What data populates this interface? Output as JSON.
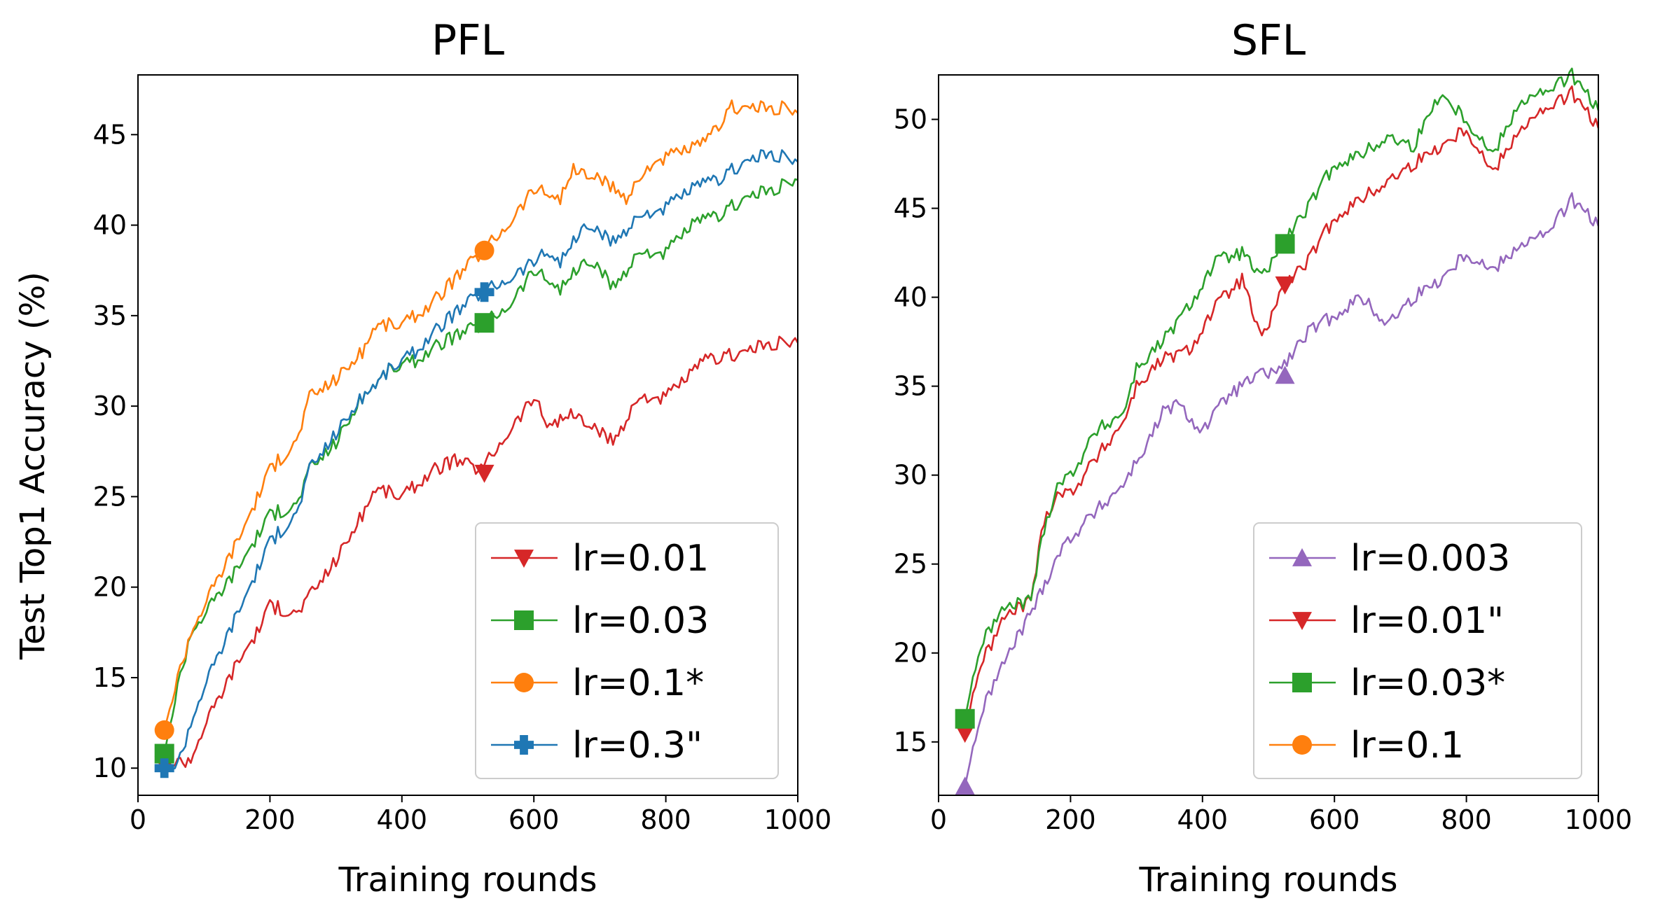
{
  "chart_data": [
    {
      "type": "line",
      "title": "PFL",
      "xlabel": "Training rounds",
      "ylabel": "Test Top1 Accuracy (%)",
      "xlim": [
        0,
        1000
      ],
      "ylim": [
        8.5,
        48.3
      ],
      "xticks": [
        "0",
        "200",
        "400",
        "600",
        "800",
        "1000"
      ],
      "yticks": [
        "10",
        "15",
        "20",
        "25",
        "30",
        "35",
        "40",
        "45"
      ],
      "legend_position": "lower-right",
      "series": [
        {
          "name": "lr=0.01",
          "color": "#d62728",
          "marker": "triangle-down",
          "x": [
            40,
            80,
            100,
            150,
            180,
            200,
            240,
            260,
            300,
            340,
            360,
            400,
            450,
            480,
            520,
            560,
            600,
            620,
            660,
            700,
            720,
            760,
            800,
            860,
            900,
            960,
            1000
          ],
          "values": [
            10.2,
            10.5,
            12.3,
            15.8,
            17.5,
            19.0,
            18.5,
            19.5,
            21.5,
            24.0,
            25.5,
            25.0,
            26.5,
            27.0,
            26.5,
            28.5,
            30.5,
            29.0,
            29.5,
            28.5,
            28.0,
            30.5,
            30.5,
            32.5,
            32.8,
            33.5,
            33.5
          ],
          "marker_point": [
            525,
            26.3
          ]
        },
        {
          "name": "lr=0.03",
          "color": "#2ca02c",
          "marker": "square",
          "x": [
            40,
            60,
            80,
            100,
            150,
            200,
            240,
            260,
            300,
            340,
            380,
            420,
            460,
            520,
            560,
            600,
            640,
            680,
            700,
            720,
            760,
            800,
            840,
            880,
            920,
            960,
            1000
          ],
          "values": [
            10.8,
            14.5,
            17.5,
            18.5,
            21.0,
            24.0,
            24.5,
            26.5,
            28.0,
            30.5,
            32.0,
            32.5,
            33.5,
            34.5,
            35.5,
            37.5,
            36.5,
            38.0,
            37.5,
            36.5,
            38.5,
            38.5,
            40.0,
            40.5,
            41.5,
            42.0,
            42.5
          ],
          "marker_point": [
            525,
            34.6
          ]
        },
        {
          "name": "lr=0.1*",
          "color": "#ff7f0e",
          "marker": "circle",
          "x": [
            40,
            60,
            80,
            100,
            150,
            200,
            240,
            260,
            300,
            340,
            360,
            400,
            440,
            480,
            520,
            560,
            600,
            640,
            660,
            700,
            740,
            780,
            820,
            860,
            900,
            940,
            980,
            1000
          ],
          "values": [
            12.1,
            15.0,
            17.5,
            19.0,
            22.5,
            26.5,
            28.0,
            30.5,
            31.5,
            33.0,
            34.5,
            34.5,
            35.5,
            37.0,
            38.5,
            40.0,
            42.0,
            41.5,
            43.0,
            42.5,
            41.5,
            43.5,
            44.0,
            44.5,
            46.5,
            46.5,
            46.5,
            46.2
          ],
          "marker_point": [
            525,
            38.6
          ]
        },
        {
          "name": "lr=0.3\"",
          "color": "#1f77b4",
          "marker": "plus-filled",
          "x": [
            40,
            60,
            80,
            100,
            150,
            200,
            240,
            260,
            300,
            340,
            380,
            420,
            460,
            520,
            560,
            600,
            620,
            640,
            680,
            720,
            760,
            800,
            840,
            880,
            920,
            960,
            1000
          ],
          "values": [
            10.0,
            10.2,
            12.5,
            14.5,
            18.5,
            22.5,
            24.0,
            26.5,
            28.5,
            30.5,
            32.0,
            33.0,
            34.5,
            36.3,
            37.0,
            38.0,
            38.5,
            38.0,
            40.0,
            39.0,
            40.5,
            41.0,
            42.0,
            42.5,
            43.5,
            44.0,
            43.5
          ],
          "marker_point": [
            525,
            36.3
          ]
        }
      ]
    },
    {
      "type": "line",
      "title": "SFL",
      "xlabel": "Training rounds",
      "ylabel": "",
      "xlim": [
        0,
        1000
      ],
      "ylim": [
        12.0,
        52.5
      ],
      "xticks": [
        "0",
        "200",
        "400",
        "600",
        "800",
        "1000"
      ],
      "yticks": [
        "15",
        "20",
        "25",
        "30",
        "35",
        "40",
        "45",
        "50"
      ],
      "legend_position": "lower-right",
      "series": [
        {
          "name": "lr=0.003",
          "color": "#9467bd",
          "marker": "triangle-up",
          "x": [
            40,
            60,
            80,
            100,
            150,
            180,
            200,
            240,
            280,
            320,
            340,
            360,
            400,
            440,
            480,
            520,
            560,
            600,
            640,
            680,
            720,
            760,
            800,
            840,
            880,
            920,
            960,
            1000
          ],
          "values": [
            12.5,
            16.0,
            18.0,
            19.5,
            23.0,
            25.5,
            26.5,
            28.0,
            29.5,
            32.0,
            33.5,
            34.0,
            32.5,
            34.5,
            35.5,
            36.0,
            38.0,
            39.0,
            40.0,
            38.5,
            40.0,
            41.0,
            42.5,
            41.5,
            43.0,
            43.5,
            45.5,
            44.0
          ],
          "marker_point": [
            525,
            35.6
          ]
        },
        {
          "name": "lr=0.01\"",
          "color": "#d62728",
          "marker": "triangle-down",
          "x": [
            40,
            60,
            80,
            100,
            140,
            160,
            180,
            200,
            240,
            280,
            300,
            340,
            380,
            420,
            460,
            490,
            520,
            560,
            600,
            640,
            680,
            720,
            760,
            800,
            840,
            880,
            920,
            960,
            1000
          ],
          "values": [
            15.5,
            19.0,
            20.5,
            22.0,
            23.0,
            27.5,
            29.0,
            29.0,
            31.0,
            33.0,
            35.0,
            36.5,
            37.0,
            39.5,
            41.0,
            37.5,
            40.5,
            42.0,
            44.5,
            45.5,
            46.5,
            47.5,
            48.5,
            49.5,
            47.0,
            49.5,
            50.5,
            51.5,
            49.5
          ],
          "marker_point": [
            525,
            40.7
          ]
        },
        {
          "name": "lr=0.03*",
          "color": "#2ca02c",
          "marker": "square",
          "x": [
            40,
            60,
            80,
            100,
            140,
            160,
            180,
            200,
            240,
            280,
            300,
            340,
            380,
            420,
            460,
            490,
            520,
            560,
            600,
            640,
            680,
            720,
            760,
            800,
            840,
            880,
            920,
            960,
            1000
          ],
          "values": [
            16.3,
            20.0,
            21.5,
            22.5,
            23.0,
            27.0,
            29.5,
            30.0,
            32.5,
            33.5,
            36.0,
            37.5,
            39.5,
            42.0,
            42.5,
            41.0,
            43.0,
            45.0,
            47.5,
            48.0,
            49.0,
            48.5,
            51.5,
            50.0,
            48.0,
            51.0,
            51.5,
            52.5,
            50.5
          ],
          "marker_point": [
            525,
            43.0
          ]
        },
        {
          "name": "lr=0.1",
          "color": "#ff7f0e",
          "marker": "circle",
          "x": [],
          "values": []
        }
      ]
    }
  ]
}
